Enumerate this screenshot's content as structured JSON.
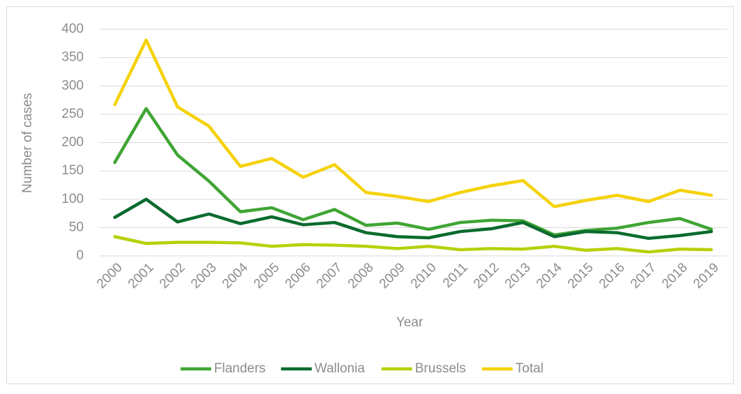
{
  "chart_data": {
    "type": "line",
    "x_label": "Year",
    "y_label": "Number of cases",
    "categories": [
      "2000",
      "2001",
      "2002",
      "2003",
      "2004",
      "2005",
      "2006",
      "2007",
      "2008",
      "2009",
      "2010",
      "2011",
      "2012",
      "2013",
      "2014",
      "2015",
      "2016",
      "2017",
      "2018",
      "2019"
    ],
    "series": [
      {
        "name": "Flanders",
        "color": "#3fa535",
        "values": [
          165,
          260,
          178,
          132,
          78,
          85,
          64,
          82,
          54,
          58,
          47,
          59,
          63,
          62,
          37,
          45,
          49,
          59,
          66,
          47
        ]
      },
      {
        "name": "Wallonia",
        "color": "#0a6b2e",
        "values": [
          68,
          100,
          60,
          74,
          57,
          69,
          55,
          59,
          41,
          34,
          32,
          43,
          48,
          59,
          34,
          43,
          41,
          31,
          36,
          43
        ]
      },
      {
        "name": "Brussels",
        "color": "#b6d10a",
        "values": [
          34,
          22,
          24,
          24,
          23,
          17,
          20,
          19,
          17,
          13,
          17,
          11,
          13,
          12,
          17,
          10,
          13,
          7,
          12,
          11
        ]
      },
      {
        "name": "Total",
        "color": "#f5d20a",
        "values": [
          267,
          381,
          263,
          229,
          158,
          172,
          139,
          161,
          112,
          105,
          96,
          112,
          124,
          133,
          87,
          98,
          107,
          96,
          116,
          107
        ]
      }
    ],
    "ylim": [
      0,
      400
    ],
    "yticks": [
      0,
      50,
      100,
      150,
      200,
      250,
      300,
      350,
      400
    ],
    "grid": true,
    "legend": "bottom"
  }
}
